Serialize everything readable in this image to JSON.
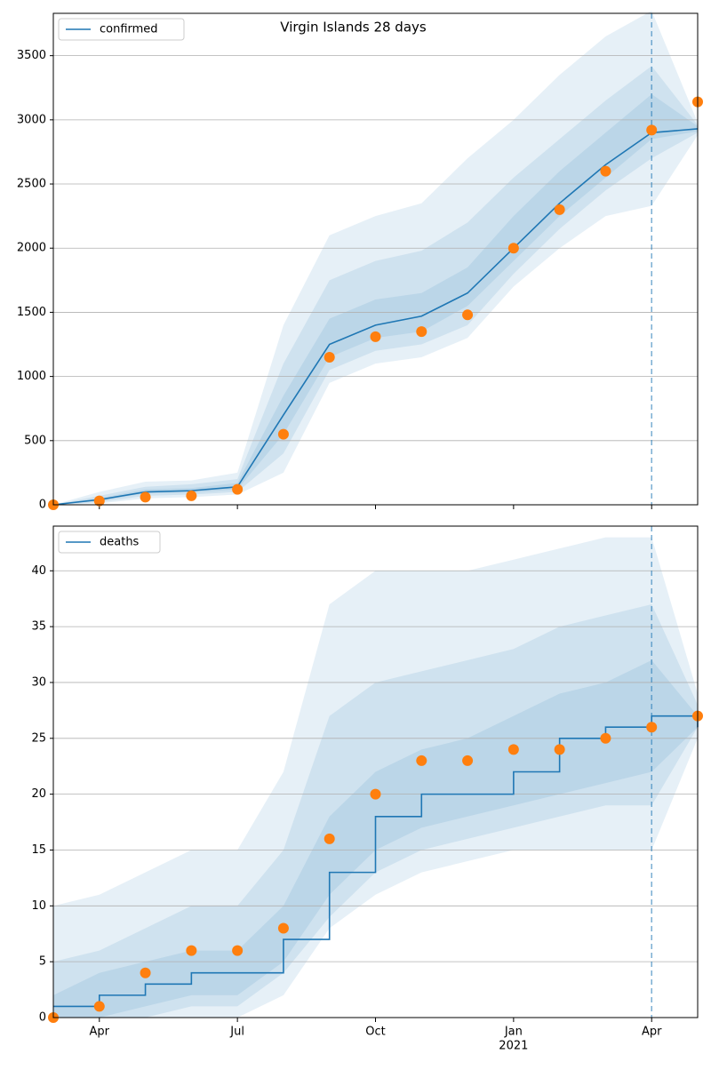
{
  "chart_data": [
    {
      "type": "line",
      "title": "Virgin Islands 28 days",
      "x": [
        "2020-03",
        "2020-04",
        "2020-05",
        "2020-06",
        "2020-07",
        "2020-08",
        "2020-09",
        "2020-10",
        "2020-11",
        "2020-12",
        "2021-01",
        "2021-02",
        "2021-03",
        "2021-04",
        "2021-05"
      ],
      "series": [
        {
          "name": "confirmed",
          "color": "#1f77b4",
          "values": [
            0,
            40,
            100,
            110,
            140,
            700,
            1250,
            1400,
            1470,
            1650,
            2000,
            2350,
            2650,
            2900,
            2930
          ]
        }
      ],
      "points": {
        "color": "#ff7f0e",
        "values": [
          0,
          30,
          60,
          70,
          120,
          550,
          1150,
          1310,
          1350,
          1480,
          2000,
          2300,
          2600,
          2920,
          3140
        ]
      },
      "bands": {
        "color": "#1f77b4",
        "ranges": [
          {
            "lower": [
              0,
              10,
              50,
              60,
              80,
              250,
              950,
              1100,
              1150,
              1300,
              1700,
              2000,
              2250,
              2330,
              2880
            ],
            "upper": [
              0,
              100,
              180,
              190,
              250,
              1400,
              2100,
              2250,
              2350,
              2700,
              3000,
              3350,
              3650,
              3850,
              2980
            ]
          },
          {
            "lower": [
              0,
              20,
              70,
              80,
              100,
              400,
              1050,
              1200,
              1250,
              1400,
              1800,
              2150,
              2450,
              2700,
              2900
            ],
            "upper": [
              0,
              70,
              140,
              160,
              200,
              1100,
              1750,
              1900,
              1980,
              2200,
              2550,
              2850,
              3150,
              3420,
              2960
            ]
          },
          {
            "lower": [
              0,
              30,
              90,
              95,
              120,
              550,
              1150,
              1300,
              1350,
              1550,
              1900,
              2250,
              2550,
              2850,
              2910
            ],
            "upper": [
              0,
              50,
              120,
              130,
              170,
              850,
              1450,
              1600,
              1650,
              1850,
              2250,
              2600,
              2900,
              3200,
              2950
            ]
          }
        ]
      },
      "vline": "2021-04",
      "xlim": [
        "2020-03",
        "2021-05"
      ],
      "xticks": [
        {
          "value": "2020-04"
        },
        {
          "value": "2020-07"
        },
        {
          "value": "2020-10"
        },
        {
          "value": "2021-01"
        },
        {
          "value": "2021-04"
        }
      ],
      "ylim": [
        0,
        3830
      ],
      "yticks": [
        0,
        500,
        1000,
        1500,
        2000,
        2500,
        3000,
        3500
      ],
      "grid": true,
      "legend": "upper left"
    },
    {
      "type": "line",
      "step": "post",
      "x": [
        "2020-03",
        "2020-04",
        "2020-05",
        "2020-06",
        "2020-07",
        "2020-08",
        "2020-09",
        "2020-10",
        "2020-11",
        "2020-12",
        "2021-01",
        "2021-02",
        "2021-03",
        "2021-04",
        "2021-05"
      ],
      "series": [
        {
          "name": "deaths",
          "color": "#1f77b4",
          "values": [
            1,
            2,
            3,
            4,
            4,
            7,
            13,
            18,
            20,
            20,
            22,
            25,
            26,
            27,
            26
          ]
        }
      ],
      "points": {
        "color": "#ff7f0e",
        "values": [
          0,
          1,
          4,
          6,
          6,
          8,
          16,
          20,
          23,
          23,
          24,
          24,
          25,
          26,
          27
        ]
      },
      "bands": {
        "color": "#1f77b4",
        "ranges": [
          {
            "lower": [
              0,
              0,
              0,
              0,
              0,
              2,
              8,
              11,
              13,
              14,
              15,
              15,
              15,
              15,
              25
            ],
            "upper": [
              10,
              11,
              13,
              15,
              15,
              22,
              37,
              40,
              40,
              40,
              41,
              42,
              43,
              43,
              29
            ]
          },
          {
            "lower": [
              0,
              0,
              0,
              1,
              1,
              4,
              9,
              13,
              15,
              16,
              17,
              18,
              19,
              19,
              26
            ],
            "upper": [
              5,
              6,
              8,
              10,
              10,
              15,
              27,
              30,
              31,
              32,
              33,
              35,
              36,
              37,
              28
            ]
          },
          {
            "lower": [
              0,
              0,
              1,
              2,
              2,
              5,
              11,
              15,
              17,
              18,
              19,
              20,
              21,
              22,
              26
            ],
            "upper": [
              2,
              4,
              5,
              6,
              6,
              10,
              18,
              22,
              24,
              25,
              27,
              29,
              30,
              32,
              27
            ]
          }
        ]
      },
      "vline": "2021-04",
      "xlim": [
        "2020-03",
        "2021-05"
      ],
      "xticks": [
        {
          "value": "2020-04",
          "label": "Apr"
        },
        {
          "value": "2020-07",
          "label": "Jul"
        },
        {
          "value": "2020-10",
          "label": "Oct"
        },
        {
          "value": "2021-01",
          "label": "Jan",
          "sublabel": "2021"
        },
        {
          "value": "2021-04",
          "label": "Apr"
        }
      ],
      "ylim": [
        0,
        44
      ],
      "yticks": [
        0,
        5,
        10,
        15,
        20,
        25,
        30,
        35,
        40
      ],
      "grid": true,
      "legend": "upper left"
    }
  ]
}
